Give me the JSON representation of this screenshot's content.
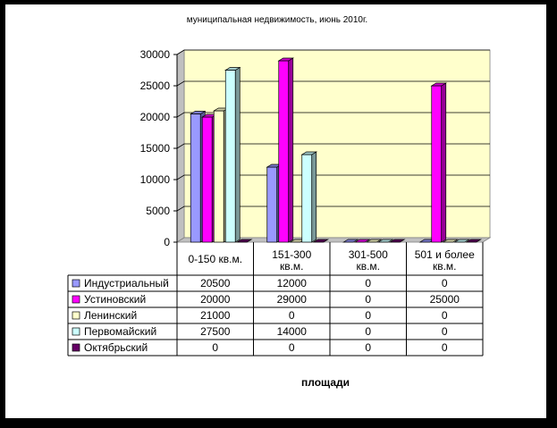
{
  "chart_data": {
    "type": "bar",
    "title": "муниципальная недвижимость, июнь 2010г.",
    "xlabel": "площади",
    "ylabel": "",
    "ylim": [
      0,
      30000
    ],
    "yticks": [
      0,
      5000,
      10000,
      15000,
      20000,
      25000,
      30000
    ],
    "grid": true,
    "legend": "data-table",
    "categories": [
      "0-150 кв.м.",
      "151-300 кв.м.",
      "301-500 кв.м.",
      "501 и более кв.м."
    ],
    "series": [
      {
        "name": "Индустриальный",
        "values": [
          20500,
          12000,
          0,
          0
        ],
        "color": "#9999FF"
      },
      {
        "name": "Устиновский",
        "values": [
          20000,
          29000,
          0,
          25000
        ],
        "color": "#FF00FF"
      },
      {
        "name": "Ленинский",
        "values": [
          21000,
          0,
          0,
          0
        ],
        "color": "#FFFFCC"
      },
      {
        "name": "Первомайский",
        "values": [
          27500,
          14000,
          0,
          0
        ],
        "color": "#CCFFFF"
      },
      {
        "name": "Октябрьский",
        "values": [
          0,
          0,
          0,
          0
        ],
        "color": "#660066"
      }
    ],
    "plot_background": "#FFFFCC"
  }
}
